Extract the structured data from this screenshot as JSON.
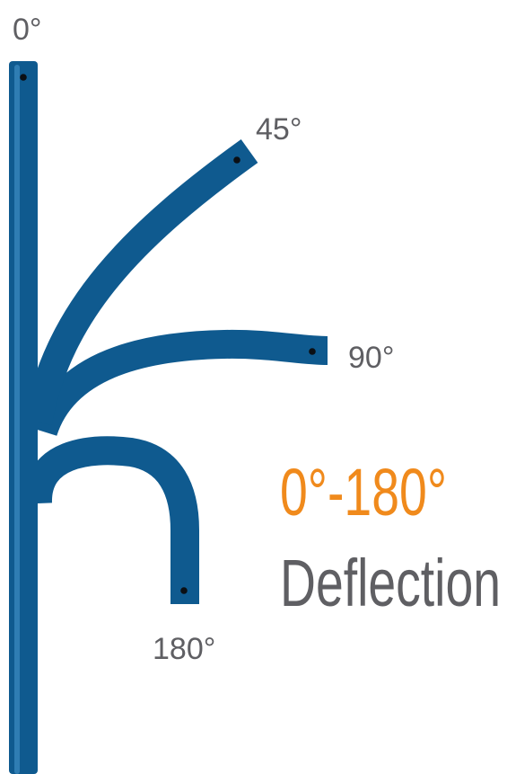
{
  "labels": {
    "angle_0": "0°",
    "angle_45": "45°",
    "angle_90": "90°",
    "angle_180": "180°"
  },
  "headline": {
    "range": "0°-180°",
    "word": "Deflection"
  },
  "colors": {
    "catheter": "#0f5a8f",
    "catheter_highlight": "#2f7db3",
    "catheter_shadow": "#0a3f66",
    "tip_port": "#0b0f14",
    "label_gray": "#5f5f63",
    "accent_orange": "#f08a1c"
  }
}
